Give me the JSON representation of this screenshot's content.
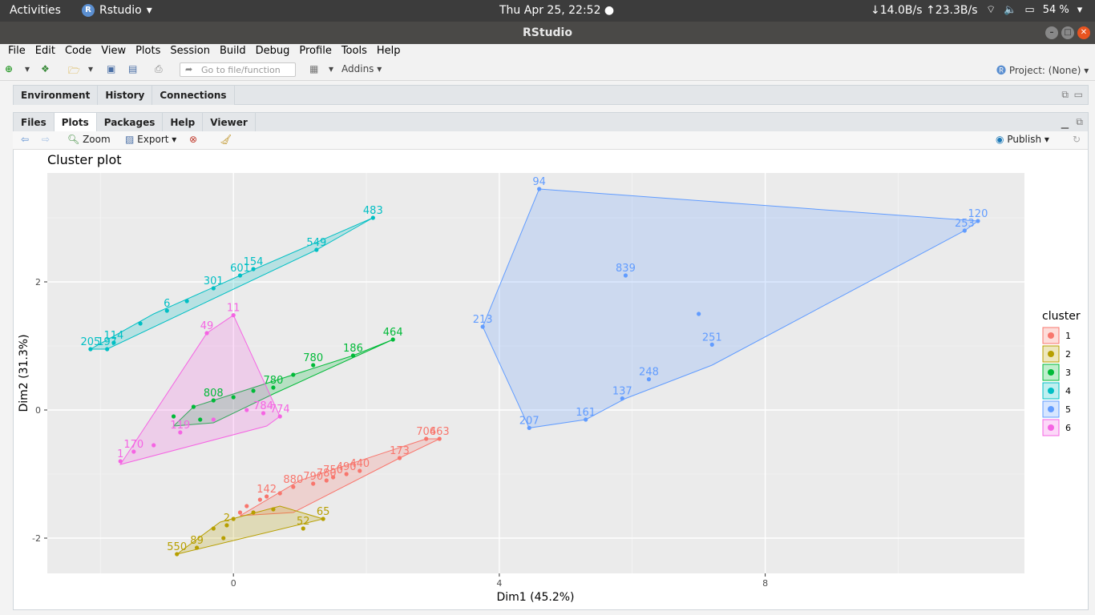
{
  "topbar": {
    "activities": "Activities",
    "app_name": "Rstudio",
    "clock": "Thu Apr 25, 22:52 ●",
    "net_down": "↓14.0B/s",
    "net_up": "↑23.3B/s",
    "battery": "54 %"
  },
  "window": {
    "title": "RStudio"
  },
  "menu": [
    "File",
    "Edit",
    "Code",
    "View",
    "Plots",
    "Session",
    "Build",
    "Debug",
    "Profile",
    "Tools",
    "Help"
  ],
  "toolbar": {
    "goto_placeholder": "Go to file/function",
    "addins": "Addins",
    "project": "Project: (None)"
  },
  "top_pane": {
    "tabs": [
      "Environment",
      "History",
      "Connections"
    ]
  },
  "bottom_pane": {
    "tabs": [
      "Files",
      "Plots",
      "Packages",
      "Help",
      "Viewer"
    ],
    "active_tab": "Plots",
    "plot_toolbar": {
      "zoom": "Zoom",
      "export": "Export",
      "publish": "Publish"
    }
  },
  "colors": {
    "c1": "#F8766D",
    "c2": "#B79F00",
    "c3": "#00BA38",
    "c4": "#00BFC4",
    "c5": "#619CFF",
    "c6": "#F564E3",
    "panel_bg": "#EBEBEB"
  },
  "chart_data": {
    "type": "scatter",
    "title": "Cluster plot",
    "xlabel": "Dim1 (45.2%)",
    "ylabel": "Dim2 (31.3%)",
    "xlim": [
      -2.8,
      11.9
    ],
    "ylim": [
      -2.55,
      3.7
    ],
    "xticks": [
      0,
      4,
      8
    ],
    "yticks": [
      -2,
      0,
      2
    ],
    "grid": true,
    "legend": {
      "title": "cluster",
      "placement": "right",
      "entries": [
        "1",
        "2",
        "3",
        "4",
        "5",
        "6"
      ]
    },
    "series": [
      {
        "name": "1",
        "hull": [
          [
            3.1,
            -0.45
          ],
          [
            2.9,
            -0.45
          ],
          [
            1.0,
            -1.1
          ],
          [
            0.1,
            -1.65
          ],
          [
            0.9,
            -1.6
          ],
          [
            2.5,
            -0.75
          ]
        ],
        "points": [
          [
            2.9,
            -0.45,
            "706"
          ],
          [
            3.1,
            -0.45,
            "463"
          ],
          [
            2.5,
            -0.75,
            "173"
          ],
          [
            1.9,
            -0.95,
            "440"
          ],
          [
            1.7,
            -1.0,
            "490"
          ],
          [
            1.5,
            -1.05,
            "750"
          ],
          [
            1.4,
            -1.1,
            "780"
          ],
          [
            1.2,
            -1.15,
            "790"
          ],
          [
            0.9,
            -1.2,
            "880"
          ],
          [
            0.5,
            -1.35,
            "142"
          ],
          [
            0.7,
            -1.3,
            ""
          ],
          [
            0.4,
            -1.4,
            ""
          ],
          [
            0.2,
            -1.5,
            ""
          ],
          [
            0.1,
            -1.6,
            ""
          ]
        ]
      },
      {
        "name": "2",
        "hull": [
          [
            -0.85,
            -2.25
          ],
          [
            1.35,
            -1.7
          ],
          [
            0.7,
            -1.5
          ],
          [
            -0.2,
            -1.75
          ]
        ],
        "points": [
          [
            -0.85,
            -2.25,
            "550"
          ],
          [
            -0.55,
            -2.15,
            "89"
          ],
          [
            1.35,
            -1.7,
            "65"
          ],
          [
            1.05,
            -1.85,
            "52"
          ],
          [
            0.6,
            -1.55,
            ""
          ],
          [
            0.3,
            -1.6,
            ""
          ],
          [
            0.0,
            -1.7,
            ""
          ],
          [
            -0.1,
            -1.8,
            "2"
          ],
          [
            -0.3,
            -1.85,
            ""
          ],
          [
            -0.15,
            -2.0,
            ""
          ]
        ]
      },
      {
        "name": "3",
        "hull": [
          [
            2.4,
            1.1
          ],
          [
            1.8,
            0.85
          ],
          [
            -0.6,
            0.05
          ],
          [
            -0.9,
            -0.25
          ],
          [
            -0.3,
            -0.2
          ],
          [
            0.6,
            0.25
          ]
        ],
        "points": [
          [
            2.4,
            1.1,
            "464"
          ],
          [
            1.8,
            0.85,
            "186"
          ],
          [
            1.2,
            0.7,
            "780"
          ],
          [
            0.9,
            0.55,
            ""
          ],
          [
            0.6,
            0.35,
            "780"
          ],
          [
            0.3,
            0.3,
            ""
          ],
          [
            0.0,
            0.2,
            ""
          ],
          [
            -0.3,
            0.15,
            "808"
          ],
          [
            -0.6,
            0.05,
            ""
          ],
          [
            -0.9,
            -0.1,
            ""
          ],
          [
            -0.5,
            -0.15,
            ""
          ]
        ]
      },
      {
        "name": "4",
        "hull": [
          [
            2.1,
            3.0
          ],
          [
            1.25,
            2.5
          ],
          [
            -1.9,
            0.95
          ],
          [
            -2.15,
            0.95
          ],
          [
            -1.2,
            1.5
          ],
          [
            0.1,
            2.1
          ]
        ],
        "points": [
          [
            2.1,
            3.0,
            "483"
          ],
          [
            1.25,
            2.5,
            "549"
          ],
          [
            0.3,
            2.2,
            "154"
          ],
          [
            0.1,
            2.1,
            "601"
          ],
          [
            -0.3,
            1.9,
            "301"
          ],
          [
            -0.7,
            1.7,
            ""
          ],
          [
            -1.0,
            1.55,
            "6"
          ],
          [
            -1.4,
            1.35,
            ""
          ],
          [
            -1.8,
            1.05,
            "114"
          ],
          [
            -2.15,
            0.95,
            "205"
          ],
          [
            -1.9,
            0.95,
            "197"
          ]
        ]
      },
      {
        "name": "5",
        "hull": [
          [
            4.6,
            3.45
          ],
          [
            11.2,
            2.95
          ],
          [
            11.0,
            2.8
          ],
          [
            7.2,
            0.7
          ],
          [
            5.9,
            0.18
          ],
          [
            5.3,
            -0.15
          ],
          [
            4.45,
            -0.28
          ],
          [
            3.75,
            1.3
          ]
        ],
        "points": [
          [
            4.6,
            3.45,
            "94"
          ],
          [
            11.2,
            2.95,
            "120"
          ],
          [
            11.0,
            2.8,
            "253"
          ],
          [
            5.9,
            2.1,
            "839"
          ],
          [
            7.0,
            1.5,
            ""
          ],
          [
            7.2,
            1.02,
            "251"
          ],
          [
            6.25,
            0.48,
            "248"
          ],
          [
            5.85,
            0.18,
            "137"
          ],
          [
            5.3,
            -0.15,
            "161"
          ],
          [
            4.45,
            -0.28,
            "207"
          ],
          [
            3.75,
            1.3,
            "213"
          ]
        ]
      },
      {
        "name": "6",
        "hull": [
          [
            0.0,
            1.48
          ],
          [
            -0.4,
            1.2
          ],
          [
            -1.7,
            -0.85
          ],
          [
            0.5,
            -0.25
          ],
          [
            0.7,
            -0.1
          ]
        ],
        "points": [
          [
            0.0,
            1.48,
            "11"
          ],
          [
            -0.4,
            1.2,
            "49"
          ],
          [
            0.7,
            -0.1,
            "774"
          ],
          [
            0.45,
            -0.05,
            "784"
          ],
          [
            0.2,
            0.0,
            ""
          ],
          [
            -0.3,
            -0.15,
            ""
          ],
          [
            -0.8,
            -0.35,
            "119"
          ],
          [
            -1.2,
            -0.55,
            ""
          ],
          [
            -1.5,
            -0.65,
            "170"
          ],
          [
            -1.7,
            -0.8,
            "1"
          ]
        ]
      }
    ]
  }
}
